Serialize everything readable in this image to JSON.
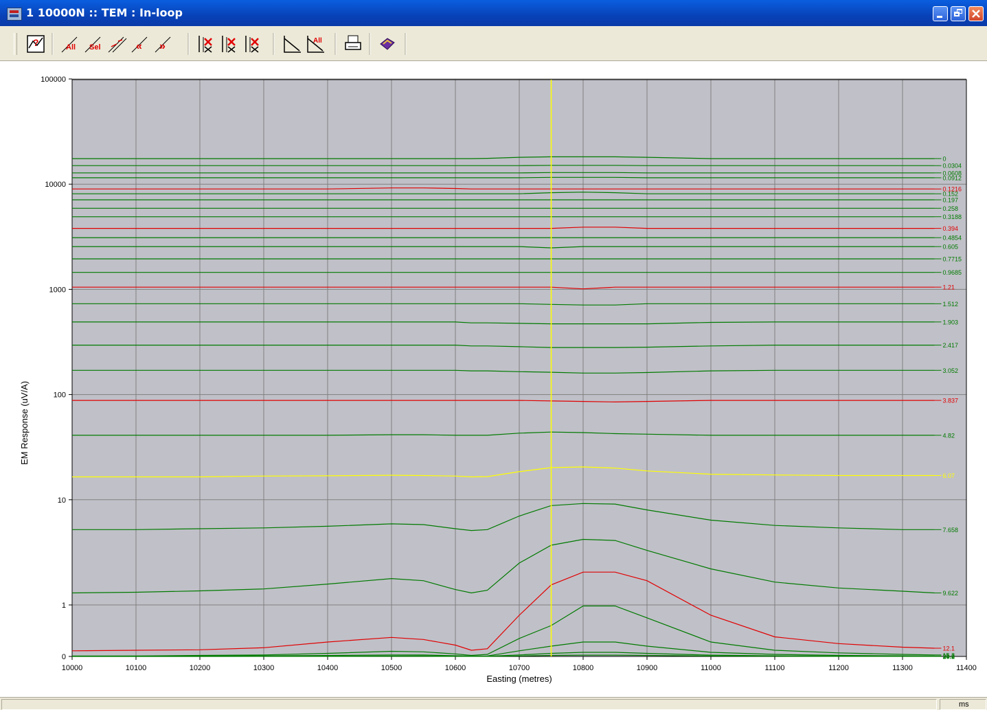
{
  "window": {
    "title": "1 10000N :: TEM : In-loop"
  },
  "toolbar": {
    "buttons": [
      {
        "icon": "profile-properties-icon"
      },
      {
        "icon": "scale-all-icon",
        "label": "All"
      },
      {
        "icon": "scale-selected-icon",
        "label": "Sel"
      },
      {
        "icon": "scale-range-icon"
      },
      {
        "icon": "scroll-left-icon",
        "label": "«"
      },
      {
        "icon": "scroll-right-icon",
        "label": "»"
      },
      {
        "icon": "channels-a-icon"
      },
      {
        "icon": "channels-b-icon"
      },
      {
        "icon": "channels-c-icon"
      },
      {
        "icon": "decay-curve-icon"
      },
      {
        "icon": "decay-all-icon",
        "label": "All"
      },
      {
        "icon": "print-icon"
      },
      {
        "icon": "help-book-icon"
      }
    ]
  },
  "colors": {
    "plot_background": "#c0c0c8",
    "grid": "#808080",
    "normal_channel": "#007a00",
    "highlight_channel": "#e00000",
    "selected_channel": "#ffff00",
    "cursor": "#ffff00"
  },
  "status": {
    "units": "ms"
  },
  "chart_data": {
    "type": "line",
    "xlabel": "Easting (metres)",
    "ylabel": "EM Response (uV/A)",
    "xlim": [
      10000,
      11400
    ],
    "x_ticks": [
      "10000",
      "10100",
      "10200",
      "10300",
      "10400",
      "10500",
      "10600",
      "10700",
      "10800",
      "10900",
      "11000",
      "11100",
      "11200",
      "11300",
      "11400"
    ],
    "y_scale": "log-linear",
    "y_ticks": [
      "0",
      "1",
      "10",
      "100",
      "1000",
      "10000",
      "100000"
    ],
    "ylim": [
      0,
      100000
    ],
    "grid": true,
    "cursor_x": 10750,
    "x": [
      10000,
      10100,
      10200,
      10300,
      10400,
      10500,
      10550,
      10600,
      10625,
      10650,
      10700,
      10750,
      10800,
      10850,
      10900,
      11000,
      11100,
      11200,
      11300,
      11350
    ],
    "series": [
      {
        "name": "0",
        "color": "normal",
        "values": [
          17500,
          17500,
          17500,
          17500,
          17500,
          17500,
          17500,
          17500,
          17500,
          17600,
          18000,
          18200,
          18200,
          18200,
          18000,
          17500,
          17500,
          17500,
          17500,
          17500
        ]
      },
      {
        "name": "0.0304",
        "color": "normal",
        "values": [
          15000,
          15000,
          15000,
          15000,
          15000,
          15000,
          15000,
          15000,
          15000,
          15000,
          15000,
          15100,
          15100,
          15100,
          15000,
          15000,
          15000,
          15000,
          15000,
          15000
        ]
      },
      {
        "name": "0.0608",
        "color": "normal",
        "values": [
          12800,
          12800,
          12800,
          12800,
          12800,
          12800,
          12800,
          12800,
          12800,
          12800,
          12800,
          12900,
          12900,
          12900,
          12800,
          12800,
          12800,
          12800,
          12800,
          12800
        ]
      },
      {
        "name": "0.0912",
        "color": "normal",
        "values": [
          11500,
          11500,
          11500,
          11500,
          11500,
          11500,
          11500,
          11500,
          11500,
          11500,
          11500,
          11600,
          11600,
          11600,
          11500,
          11500,
          11500,
          11500,
          11500,
          11500
        ]
      },
      {
        "name": "0.1216",
        "color": "highlight",
        "values": [
          9000,
          9000,
          9000,
          9000,
          9000,
          9200,
          9200,
          9100,
          9000,
          9000,
          9000,
          9000,
          9000,
          9000,
          9000,
          9000,
          9000,
          9000,
          9000,
          9000
        ]
      },
      {
        "name": "0.152",
        "color": "normal",
        "values": [
          8100,
          8100,
          8100,
          8100,
          8100,
          8100,
          8100,
          8100,
          8100,
          8100,
          8100,
          8300,
          8400,
          8300,
          8100,
          8100,
          8100,
          8100,
          8100,
          8100
        ]
      },
      {
        "name": "0.197",
        "color": "normal",
        "values": [
          7100,
          7100,
          7100,
          7100,
          7100,
          7100,
          7100,
          7100,
          7100,
          7100,
          7100,
          7100,
          7100,
          7100,
          7100,
          7100,
          7100,
          7100,
          7100,
          7100
        ]
      },
      {
        "name": "0.258",
        "color": "normal",
        "values": [
          5900,
          5900,
          5900,
          5900,
          5900,
          5900,
          5900,
          5900,
          5900,
          5900,
          5900,
          5900,
          5900,
          5900,
          5900,
          5900,
          5900,
          5900,
          5900,
          5900
        ]
      },
      {
        "name": "0.3188",
        "color": "normal",
        "values": [
          4900,
          4900,
          4900,
          4900,
          4900,
          4900,
          4900,
          4900,
          4900,
          4900,
          4900,
          4900,
          4900,
          4900,
          4900,
          4900,
          4900,
          4900,
          4900,
          4900
        ]
      },
      {
        "name": "0.394",
        "color": "highlight",
        "values": [
          3800,
          3800,
          3800,
          3800,
          3800,
          3800,
          3800,
          3800,
          3800,
          3800,
          3800,
          3800,
          3900,
          3900,
          3800,
          3800,
          3800,
          3800,
          3800,
          3800
        ]
      },
      {
        "name": "0.4854",
        "color": "normal",
        "values": [
          3100,
          3100,
          3100,
          3100,
          3100,
          3100,
          3100,
          3100,
          3100,
          3100,
          3100,
          3100,
          3100,
          3100,
          3100,
          3100,
          3100,
          3100,
          3100,
          3100
        ]
      },
      {
        "name": "0.605",
        "color": "normal",
        "values": [
          2550,
          2550,
          2550,
          2550,
          2550,
          2550,
          2550,
          2550,
          2550,
          2550,
          2550,
          2480,
          2550,
          2550,
          2550,
          2550,
          2550,
          2550,
          2550,
          2550
        ]
      },
      {
        "name": "0.7715",
        "color": "normal",
        "values": [
          1950,
          1950,
          1950,
          1950,
          1950,
          1950,
          1950,
          1950,
          1950,
          1950,
          1950,
          1950,
          1950,
          1950,
          1950,
          1950,
          1950,
          1950,
          1950,
          1950
        ]
      },
      {
        "name": "0.9685",
        "color": "normal",
        "values": [
          1450,
          1450,
          1450,
          1450,
          1450,
          1450,
          1450,
          1450,
          1450,
          1450,
          1450,
          1450,
          1450,
          1450,
          1450,
          1450,
          1450,
          1450,
          1450,
          1450
        ]
      },
      {
        "name": "1.21",
        "color": "highlight",
        "values": [
          1050,
          1050,
          1050,
          1050,
          1050,
          1050,
          1050,
          1050,
          1050,
          1050,
          1050,
          1050,
          1010,
          1050,
          1050,
          1050,
          1050,
          1050,
          1050,
          1050
        ]
      },
      {
        "name": "1.512",
        "color": "normal",
        "values": [
          730,
          730,
          730,
          730,
          730,
          730,
          730,
          730,
          730,
          730,
          730,
          720,
          710,
          710,
          730,
          730,
          730,
          730,
          730,
          730
        ]
      },
      {
        "name": "1.903",
        "color": "normal",
        "values": [
          490,
          490,
          490,
          490,
          490,
          490,
          490,
          490,
          480,
          480,
          475,
          470,
          470,
          470,
          470,
          485,
          490,
          490,
          490,
          490
        ]
      },
      {
        "name": "2.417",
        "color": "normal",
        "values": [
          295,
          295,
          295,
          295,
          295,
          295,
          295,
          295,
          290,
          290,
          285,
          280,
          280,
          280,
          282,
          290,
          295,
          295,
          295,
          295
        ]
      },
      {
        "name": "3.052",
        "color": "normal",
        "values": [
          170,
          170,
          170,
          170,
          170,
          170,
          170,
          170,
          168,
          168,
          165,
          163,
          160,
          160,
          162,
          168,
          170,
          170,
          170,
          170
        ]
      },
      {
        "name": "3.837",
        "color": "highlight",
        "values": [
          88,
          88,
          88,
          88,
          88,
          88,
          88,
          88,
          88,
          88,
          88,
          87,
          86,
          85,
          86,
          88,
          88,
          88,
          88,
          88
        ]
      },
      {
        "name": "4.82",
        "color": "normal",
        "values": [
          41,
          41,
          41,
          41,
          41,
          41.5,
          41.5,
          41,
          41,
          41,
          43,
          44,
          43.5,
          42.5,
          42,
          41,
          41,
          41,
          41,
          41
        ]
      },
      {
        "name": "6.07",
        "color": "selected",
        "values": [
          16.5,
          16.5,
          16.5,
          16.8,
          16.9,
          17.1,
          17.0,
          16.8,
          16.5,
          16.6,
          18.5,
          20.2,
          20.5,
          20.0,
          18.8,
          17.5,
          17.2,
          17.0,
          17.0,
          17.0
        ]
      },
      {
        "name": "7.658",
        "color": "normal",
        "values": [
          5.2,
          5.2,
          5.3,
          5.4,
          5.6,
          5.9,
          5.8,
          5.3,
          5.1,
          5.2,
          7.0,
          8.8,
          9.2,
          9.1,
          8.0,
          6.4,
          5.7,
          5.4,
          5.2,
          5.2
        ]
      },
      {
        "name": "9.622",
        "color": "normal",
        "values": [
          1.3,
          1.32,
          1.36,
          1.42,
          1.58,
          1.78,
          1.7,
          1.4,
          1.3,
          1.38,
          2.5,
          3.7,
          4.2,
          4.1,
          3.3,
          2.2,
          1.65,
          1.45,
          1.35,
          1.3
        ]
      },
      {
        "name": "12.1",
        "color": "highlight",
        "values": [
          0.11,
          0.12,
          0.13,
          0.17,
          0.28,
          0.37,
          0.33,
          0.22,
          0.12,
          0.15,
          0.8,
          1.55,
          2.05,
          2.05,
          1.7,
          0.8,
          0.38,
          0.25,
          0.18,
          0.16
        ]
      },
      {
        "name": "15.2",
        "color": "normal",
        "values": [
          0.01,
          0.01,
          0.02,
          0.03,
          0.06,
          0.1,
          0.09,
          0.05,
          0.02,
          0.04,
          0.35,
          0.6,
          0.98,
          0.98,
          0.75,
          0.28,
          0.12,
          0.07,
          0.04,
          0.03
        ]
      },
      {
        "name": "19.1",
        "color": "normal",
        "values": [
          0.005,
          0.006,
          0.008,
          0.012,
          0.018,
          0.03,
          0.028,
          0.014,
          0.006,
          0.01,
          0.11,
          0.2,
          0.28,
          0.28,
          0.2,
          0.08,
          0.04,
          0.02,
          0.012,
          0.01
        ]
      },
      {
        "name": "24.0",
        "color": "normal",
        "values": [
          0.002,
          0.002,
          0.003,
          0.004,
          0.006,
          0.01,
          0.009,
          0.005,
          0.002,
          0.004,
          0.03,
          0.06,
          0.08,
          0.08,
          0.06,
          0.025,
          0.012,
          0.007,
          0.004,
          0.003
        ]
      },
      {
        "name": "30.2",
        "color": "normal",
        "values": [
          0,
          0,
          0,
          0.001,
          0.002,
          0.003,
          0.003,
          0.002,
          0.001,
          0.001,
          0.01,
          0.02,
          0.025,
          0.025,
          0.02,
          0.008,
          0.004,
          0.002,
          0.001,
          0.001
        ]
      }
    ]
  }
}
